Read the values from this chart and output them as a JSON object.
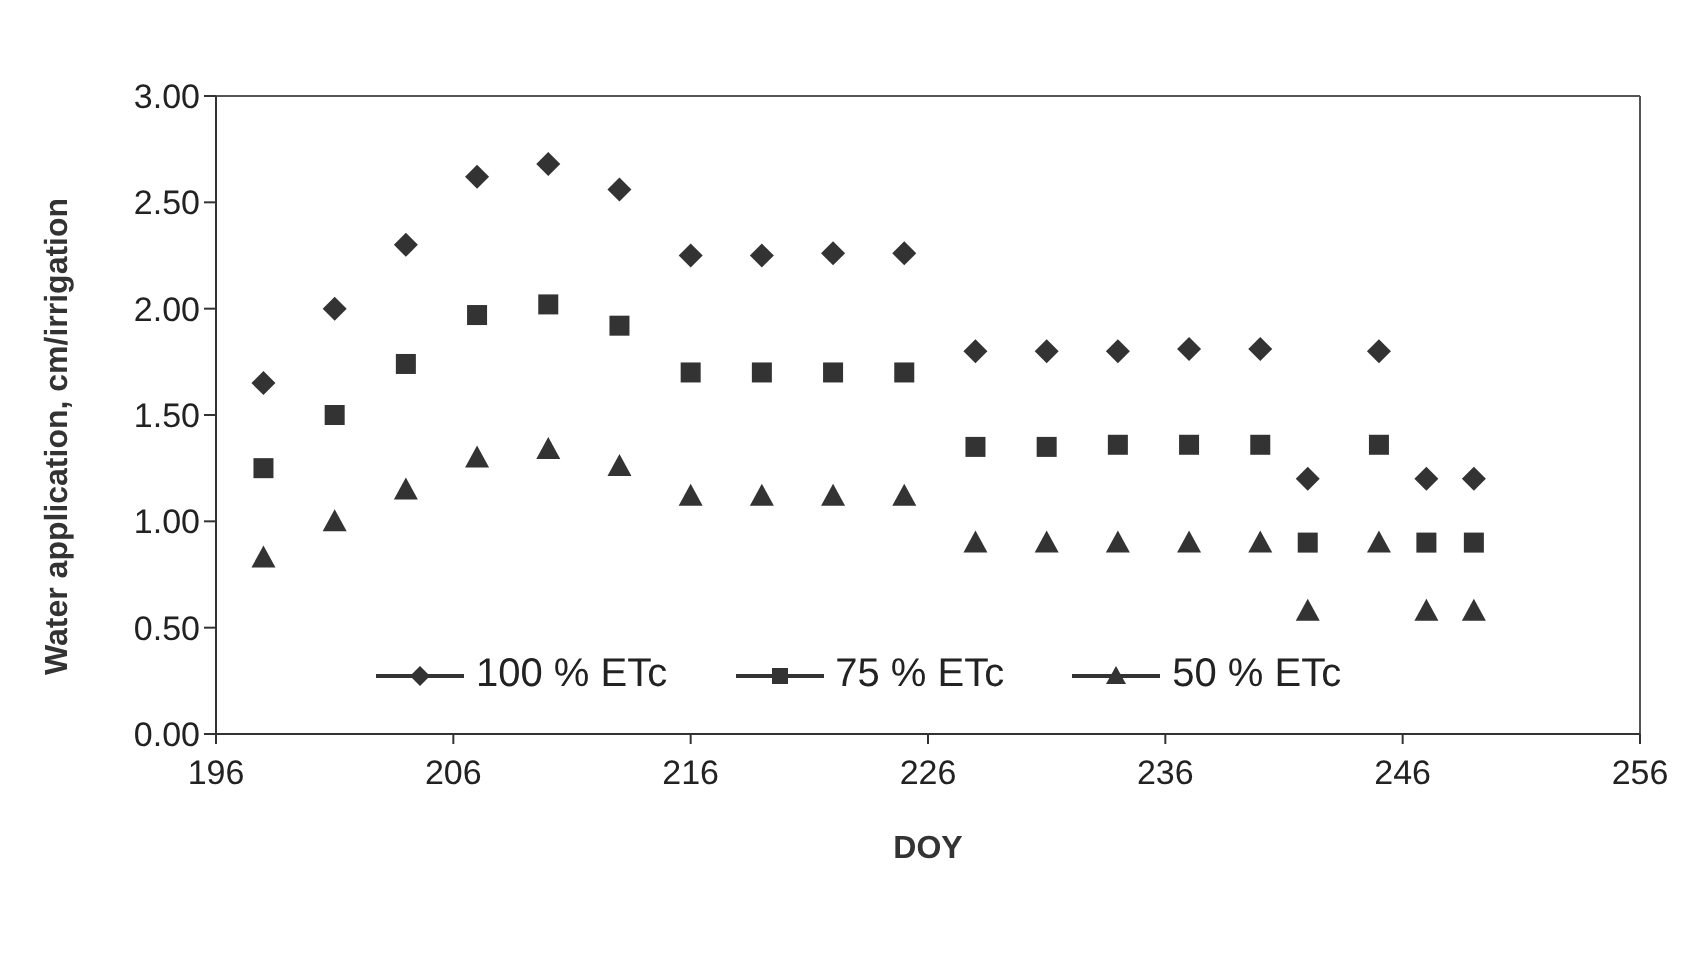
{
  "chart_data": {
    "type": "scatter",
    "xlabel": "DOY",
    "ylabel": "Water application, cm/irrigation",
    "x": [
      198,
      201,
      204,
      207,
      210,
      213,
      216,
      219,
      222,
      225,
      228,
      231,
      234,
      237,
      240,
      242,
      245,
      247,
      249
    ],
    "series": [
      {
        "name": "100 % ETc",
        "color": "#333333",
        "marker": "diamond",
        "values": [
          1.65,
          2.0,
          2.3,
          2.62,
          2.68,
          2.56,
          2.25,
          2.25,
          2.26,
          2.26,
          1.8,
          1.8,
          1.8,
          1.81,
          1.81,
          1.2,
          1.8,
          1.2,
          1.2
        ]
      },
      {
        "name": "75 % ETc",
        "color": "#333333",
        "marker": "square",
        "values": [
          1.25,
          1.5,
          1.74,
          1.97,
          2.02,
          1.92,
          1.7,
          1.7,
          1.7,
          1.7,
          1.35,
          1.35,
          1.36,
          1.36,
          1.36,
          0.9,
          1.36,
          0.9,
          0.9
        ]
      },
      {
        "name": "50 % ETc",
        "color": "#333333",
        "marker": "triangle",
        "values": [
          0.83,
          1.0,
          1.15,
          1.3,
          1.34,
          1.26,
          1.12,
          1.12,
          1.12,
          1.12,
          0.9,
          0.9,
          0.9,
          0.9,
          0.9,
          0.58,
          0.9,
          0.58,
          0.58
        ]
      }
    ],
    "xlim": [
      196,
      256
    ],
    "xticks": [
      196,
      206,
      216,
      226,
      236,
      246,
      256
    ],
    "ylim": [
      0,
      3
    ],
    "yticks": [
      {
        "value": 0,
        "label": "0.00"
      },
      {
        "value": 0.5,
        "label": "0.50"
      },
      {
        "value": 1,
        "label": "1.00"
      },
      {
        "value": 1.5,
        "label": "1.50"
      },
      {
        "value": 2,
        "label": "2.00"
      },
      {
        "value": 2.5,
        "label": "2.50"
      },
      {
        "value": 3,
        "label": "3.00"
      }
    ],
    "legend": "bottom",
    "grid": false
  }
}
